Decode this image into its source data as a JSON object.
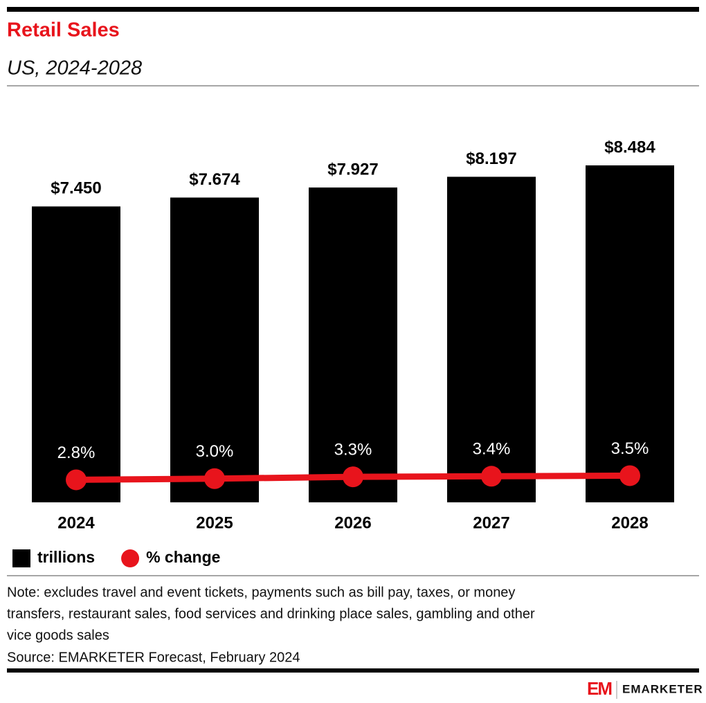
{
  "chart_data": {
    "type": "bar",
    "title": "Retail Sales",
    "subtitle": "US, 2024-2028",
    "categories": [
      "2024",
      "2025",
      "2026",
      "2027",
      "2028"
    ],
    "series": [
      {
        "name": "trillions",
        "type": "bar",
        "color": "#000000",
        "values": [
          7.45,
          7.674,
          7.927,
          8.197,
          8.484
        ],
        "value_labels": [
          "$7.450",
          "$7.674",
          "$7.927",
          "$8.197",
          "$8.484"
        ]
      },
      {
        "name": "% change",
        "type": "line",
        "axis": "y2",
        "color": "#e8141c",
        "values": [
          2.8,
          3.0,
          3.3,
          3.4,
          3.5
        ],
        "value_labels": [
          "2.8%",
          "3.0%",
          "3.3%",
          "3.4%",
          "3.5%"
        ]
      }
    ],
    "ylim": [
      0,
      10
    ],
    "y2lim": [
      -1,
      66
    ],
    "grid": false,
    "legend": "bottom-left",
    "note": [
      "Note: excludes travel and event tickets, payments such as bill pay, taxes, or money",
      "transfers, restaurant sales, food services and drinking place sales, gambling and other",
      "vice goods sales"
    ],
    "source": "Source: EMARKETER Forecast, February 2024",
    "logo_mark": "EM",
    "logo": "EMARKETER"
  }
}
